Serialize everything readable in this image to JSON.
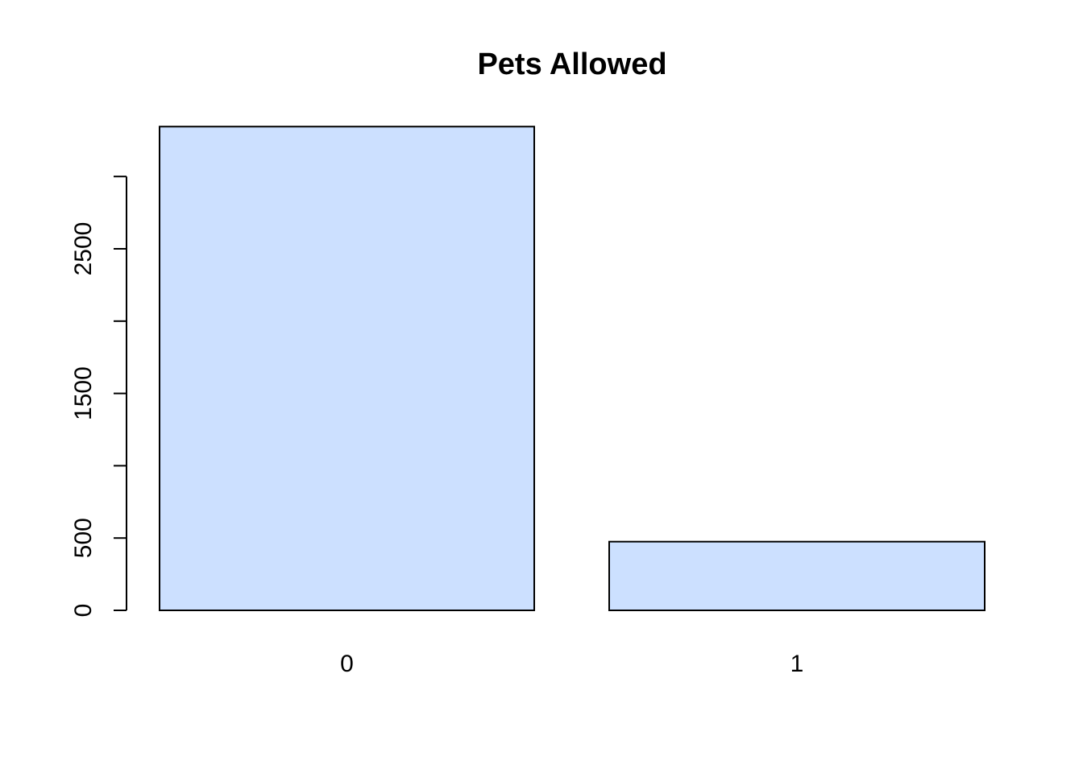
{
  "chart_data": {
    "type": "bar",
    "title": "Pets Allowed",
    "xlabel": "",
    "ylabel": "",
    "categories": [
      "0",
      "1"
    ],
    "values": [
      3345,
      475
    ],
    "ylim": [
      0,
      3345
    ],
    "y_ticks": [
      0,
      500,
      1000,
      1500,
      2000,
      2500,
      3000
    ],
    "y_tick_labels": [
      "0",
      "500",
      "",
      "1500",
      "",
      "2500",
      ""
    ],
    "bar_color": "#CCE0FF",
    "border_color": "#000000",
    "grid": false
  }
}
